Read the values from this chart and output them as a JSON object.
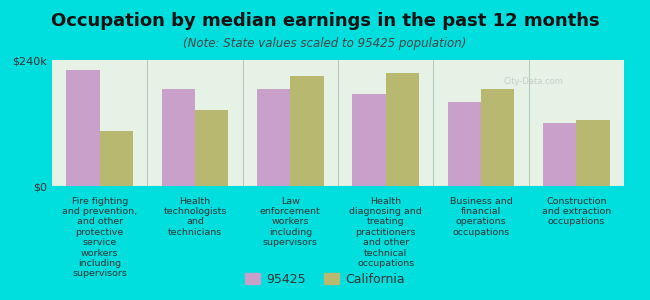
{
  "title": "Occupation by median earnings in the past 12 months",
  "subtitle": "(Note: State values scaled to 95425 population)",
  "background_color": "#00dede",
  "plot_bg_gradient_top": "#dff0d8",
  "plot_bg_gradient_bottom": "#f5fff5",
  "categories": [
    "Fire fighting\nand prevention,\nand other\nprotective\nservice\nworkers\nincluding\nsupervisors",
    "Health\ntechnologists\nand\ntechnicians",
    "Law\nenforcement\nworkers\nincluding\nsupervisors",
    "Health\ndiagnosing and\ntreating\npractitioners\nand other\ntechnical\noccupations",
    "Business and\nfinancial\noperations\noccupations",
    "Construction\nand extraction\noccupations"
  ],
  "values_95425": [
    220000,
    185000,
    185000,
    175000,
    160000,
    120000
  ],
  "values_california": [
    105000,
    145000,
    210000,
    215000,
    185000,
    125000
  ],
  "color_95425": "#c9a0c9",
  "color_california": "#b8b870",
  "ylim": [
    0,
    240000
  ],
  "yticks": [
    0,
    240000
  ],
  "ytick_labels": [
    "$0",
    "$240k"
  ],
  "legend_labels": [
    "95425",
    "California"
  ],
  "bar_width": 0.35,
  "title_fontsize": 13,
  "subtitle_fontsize": 8.5,
  "tick_fontsize": 8,
  "label_fontsize": 6.8,
  "legend_fontsize": 9
}
